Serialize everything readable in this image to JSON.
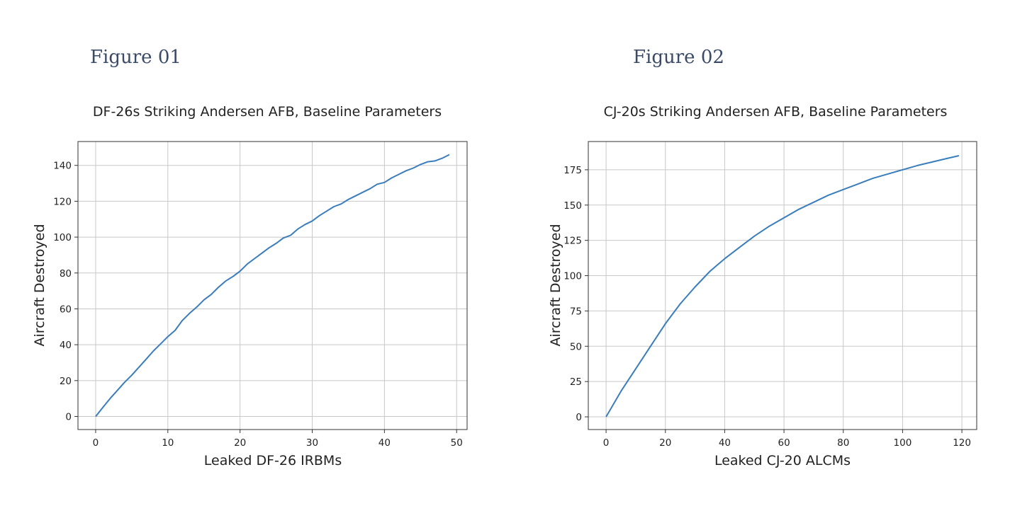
{
  "figures": [
    {
      "heading": "Figure 01"
    },
    {
      "heading": "Figure 02"
    }
  ],
  "colors": {
    "line": "#3a7dbd",
    "grid": "#c8c8c8",
    "heading": "#3b4a66"
  },
  "chart_data": [
    {
      "type": "line",
      "title": "DF-26s Striking Andersen AFB, Baseline Parameters",
      "xlabel": "Leaked DF-26 IRBMs",
      "ylabel": "Aircraft Destroyed",
      "xlim": [
        -2.45,
        51.45
      ],
      "ylim": [
        -7.3,
        153.3
      ],
      "xticks": [
        0,
        10,
        20,
        30,
        40,
        50
      ],
      "yticks": [
        0,
        20,
        40,
        60,
        80,
        100,
        120,
        140
      ],
      "grid": true,
      "series": [
        {
          "x": [
            0,
            1,
            2,
            3,
            4,
            5,
            6,
            7,
            8,
            9,
            10,
            11,
            12,
            13,
            14,
            15,
            16,
            17,
            18,
            19,
            20,
            21,
            22,
            23,
            24,
            25,
            26,
            27,
            28,
            29,
            30,
            31,
            32,
            33,
            34,
            35,
            36,
            37,
            38,
            39,
            40,
            41,
            42,
            43,
            44,
            45,
            46,
            47,
            48,
            49
          ],
          "values": [
            0,
            5,
            10,
            14.5,
            19,
            23,
            27.5,
            32,
            36.5,
            40.5,
            44.5,
            48,
            53.5,
            57.5,
            61,
            65,
            68,
            72,
            75.5,
            78,
            81,
            85,
            88,
            91,
            94,
            96.5,
            99.5,
            101,
            104.5,
            107,
            109,
            112,
            114.5,
            117,
            118.5,
            121,
            123,
            125,
            127,
            129.5,
            130.5,
            133,
            135,
            137,
            138.5,
            140.5,
            142,
            142.5,
            144,
            146
          ]
        }
      ]
    },
    {
      "type": "line",
      "title": "CJ-20s Striking Andersen AFB, Baseline Parameters",
      "xlabel": "Leaked CJ-20 ALCMs",
      "ylabel": "Aircraft Destroyed",
      "xlim": [
        -6,
        125
      ],
      "ylim": [
        -9,
        195
      ],
      "xticks": [
        0,
        20,
        40,
        60,
        80,
        100,
        120
      ],
      "yticks": [
        0,
        25,
        50,
        75,
        100,
        125,
        150,
        175
      ],
      "grid": true,
      "series": [
        {
          "x": [
            0,
            5,
            10,
            15,
            20,
            25,
            30,
            35,
            40,
            45,
            50,
            55,
            60,
            65,
            70,
            75,
            80,
            85,
            90,
            95,
            100,
            105,
            110,
            115,
            119
          ],
          "values": [
            0,
            18,
            34,
            50,
            66,
            80,
            92,
            103,
            112,
            120,
            128,
            135,
            141,
            147,
            152,
            157,
            161,
            165,
            169,
            172,
            175,
            178,
            180.5,
            183,
            185
          ]
        }
      ]
    }
  ]
}
